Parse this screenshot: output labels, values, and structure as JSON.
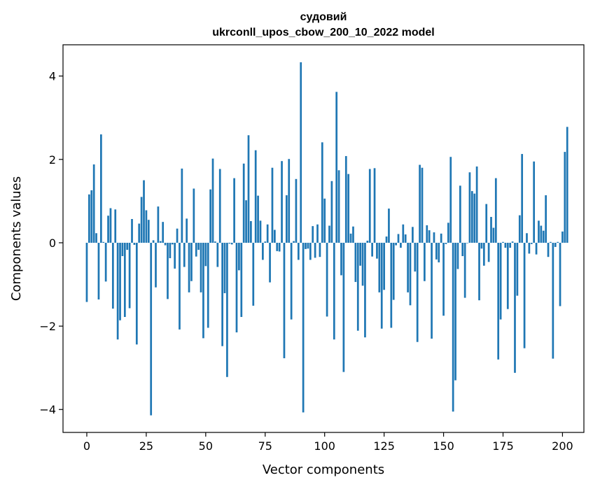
{
  "chart_data": {
    "type": "bar",
    "title_line1": "судовий",
    "title_line2": "ukrconll_upos_cbow_200_10_2022 model",
    "xlabel": "Vector components",
    "ylabel": "Components values",
    "xlim": [
      -10,
      209
    ],
    "ylim": [
      -4.55,
      4.75
    ],
    "x_ticks": [
      0,
      25,
      50,
      75,
      100,
      125,
      150,
      175,
      200
    ],
    "x_tick_labels": [
      "0",
      "25",
      "50",
      "75",
      "100",
      "125",
      "150",
      "175",
      "200"
    ],
    "y_ticks": [
      -4,
      -2,
      0,
      2,
      4
    ],
    "y_tick_labels": [
      "−4",
      "−2",
      "0",
      "2",
      "4"
    ],
    "bar_color": "#1f77b4",
    "grid": false,
    "values": [
      -1.42,
      1.16,
      1.26,
      1.88,
      0.23,
      -1.36,
      2.6,
      0.02,
      -0.93,
      0.65,
      0.83,
      -1.58,
      0.8,
      -2.32,
      -1.86,
      -0.32,
      -1.78,
      -0.17,
      -1.57,
      0.57,
      -0.05,
      -2.44,
      0.46,
      1.1,
      1.5,
      0.78,
      0.55,
      -4.14,
      0.06,
      -1.07,
      0.87,
      0.04,
      0.5,
      -0.06,
      -1.35,
      -0.37,
      -0.04,
      -0.62,
      0.34,
      -2.08,
      1.78,
      -0.58,
      0.58,
      -1.19,
      -0.92,
      1.3,
      -0.33,
      -0.17,
      -1.19,
      -2.29,
      -0.56,
      -2.04,
      1.28,
      2.02,
      0.03,
      -0.58,
      1.77,
      -2.48,
      -1.21,
      -3.22,
      -0.02,
      -0.04,
      1.55,
      -2.15,
      -0.66,
      -1.78,
      1.9,
      1.02,
      2.58,
      0.52,
      -1.51,
      2.22,
      1.13,
      0.53,
      -0.41,
      0.03,
      0.44,
      -0.95,
      1.8,
      0.31,
      -0.2,
      -0.21,
      1.96,
      -2.77,
      1.14,
      2.01,
      -1.84,
      0.04,
      1.53,
      -0.41,
      4.33,
      -4.07,
      -0.15,
      -0.14,
      -0.41,
      0.4,
      -0.36,
      0.44,
      -0.34,
      2.41,
      1.06,
      -1.77,
      0.41,
      1.48,
      -2.32,
      3.62,
      1.74,
      -0.78,
      -3.1,
      2.08,
      1.65,
      0.22,
      0.39,
      -0.94,
      -2.11,
      -0.55,
      -1.03,
      -2.27,
      0.05,
      1.77,
      -0.33,
      1.79,
      -0.38,
      -1.19,
      -2.06,
      -1.13,
      0.15,
      0.82,
      -2.04,
      -1.37,
      -0.06,
      0.21,
      -0.12,
      0.44,
      0.2,
      -1.19,
      -1.5,
      0.38,
      -0.69,
      -2.38,
      1.87,
      1.8,
      -0.92,
      0.42,
      0.3,
      -2.3,
      0.25,
      -0.4,
      -0.47,
      0.22,
      -1.75,
      -0.03,
      0.48,
      2.06,
      -4.05,
      -3.3,
      -0.63,
      1.37,
      -0.32,
      -1.32,
      -0.01,
      1.69,
      1.24,
      1.18,
      1.83,
      -1.38,
      -0.14,
      -0.55,
      0.93,
      -0.46,
      0.62,
      0.36,
      1.55,
      -2.8,
      -1.84,
      0.02,
      -0.12,
      -1.59,
      -0.12,
      0.03,
      -3.12,
      -1.27,
      0.66,
      2.13,
      -2.53,
      0.23,
      -0.26,
      -0.03,
      1.95,
      -0.28,
      0.53,
      0.41,
      0.29,
      1.14,
      -0.34,
      0.02,
      -2.78,
      -0.1,
      0.02,
      -1.52,
      0.27,
      2.18,
      2.78
    ]
  }
}
